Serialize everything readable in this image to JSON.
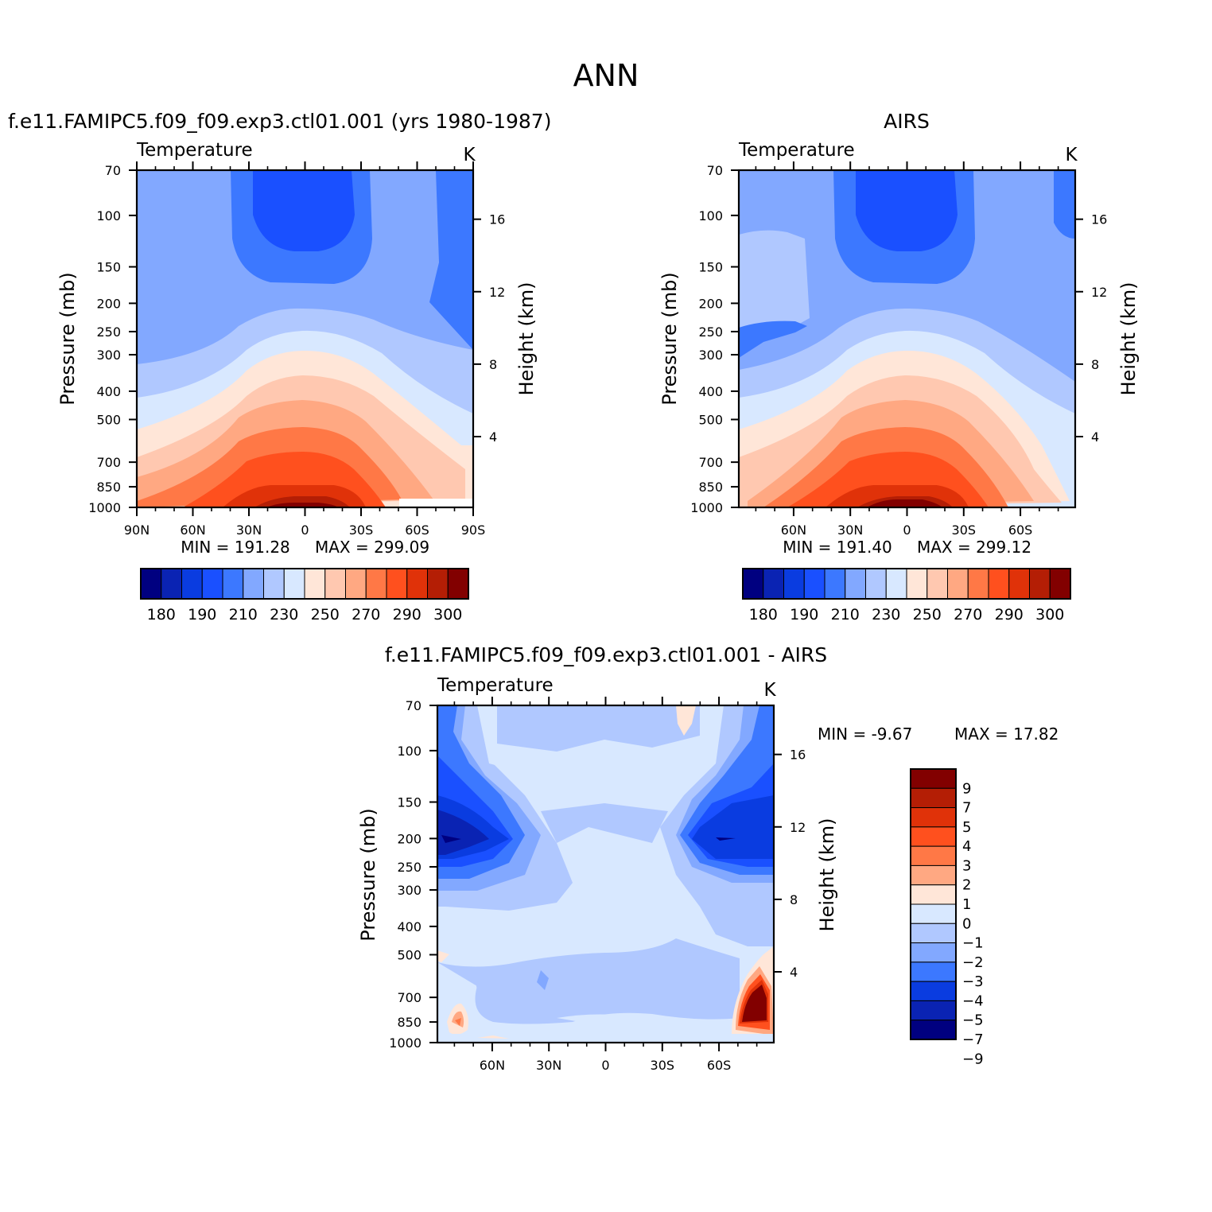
{
  "figure": {
    "title": "ANN"
  },
  "colors": {
    "abs_scale": [
      "#000080",
      "#0a23b3",
      "#0a3ce0",
      "#1a50ff",
      "#3c78ff",
      "#82a8ff",
      "#b0c8ff",
      "#d8e8ff",
      "#ffe6d8",
      "#ffc8b0",
      "#ffa882",
      "#ff7846",
      "#ff501e",
      "#e03209",
      "#b41e05",
      "#820000"
    ],
    "diff_scale": [
      "#820000",
      "#b41e05",
      "#e03209",
      "#ff501e",
      "#ff7846",
      "#ffa882",
      "#ffe6d8",
      "#d8e8ff",
      "#b0c8ff",
      "#82a8ff",
      "#3c78ff",
      "#0a3ce0",
      "#0a23b3",
      "#000080"
    ]
  },
  "chart_data": [
    {
      "type": "heatmap",
      "panel_title": "f.e11.FAMIPC5.f09_f09.exp3.ctl01.001 (yrs 1980-1987)",
      "variable": "Temperature",
      "units": "K",
      "ylabel": "Pressure (mb)",
      "ylabel_right": "Height (km)",
      "x_ticks": [
        "90N",
        "60N",
        "30N",
        "0",
        "30S",
        "60S",
        "90S"
      ],
      "y_ticks": [
        70,
        100,
        150,
        200,
        250,
        300,
        400,
        500,
        700,
        850,
        1000
      ],
      "right_ticks": [
        16,
        12,
        8,
        4
      ],
      "min_label": "MIN = 191.28",
      "max_label": "MAX = 299.09",
      "colorbar_labels": [
        180,
        190,
        210,
        230,
        250,
        270,
        290,
        300
      ],
      "legend_position": "bottom",
      "ylim": [
        1000,
        70
      ],
      "log_y": true,
      "grid": false
    },
    {
      "type": "heatmap",
      "panel_title": "AIRS",
      "variable": "Temperature",
      "units": "K",
      "ylabel": "Pressure (mb)",
      "ylabel_right": "Height (km)",
      "x_ticks": [
        "60N",
        "30N",
        "0",
        "30S",
        "60S"
      ],
      "y_ticks": [
        70,
        100,
        150,
        200,
        250,
        300,
        400,
        500,
        700,
        850,
        1000
      ],
      "right_ticks": [
        16,
        12,
        8,
        4
      ],
      "min_label": "MIN = 191.40",
      "max_label": "MAX = 299.12",
      "colorbar_labels": [
        180,
        190,
        210,
        230,
        250,
        270,
        290,
        300
      ],
      "legend_position": "bottom",
      "ylim": [
        1000,
        70
      ],
      "log_y": true,
      "grid": false
    },
    {
      "type": "heatmap",
      "panel_title": "f.e11.FAMIPC5.f09_f09.exp3.ctl01.001 - AIRS",
      "variable": "Temperature",
      "units": "K",
      "ylabel": "Pressure (mb)",
      "ylabel_right": "Height (km)",
      "x_ticks": [
        "60N",
        "30N",
        "0",
        "30S",
        "60S"
      ],
      "y_ticks": [
        70,
        100,
        150,
        200,
        250,
        300,
        400,
        500,
        700,
        850,
        1000
      ],
      "right_ticks": [
        16,
        12,
        8,
        4
      ],
      "min_label": "MIN = -9.67",
      "max_label": "MAX = 17.82",
      "colorbar_labels": [
        9,
        7,
        5,
        4,
        3,
        2,
        1,
        0,
        -1,
        -2,
        -3,
        -4,
        -5,
        -7,
        -9
      ],
      "legend_position": "right",
      "ylim": [
        1000,
        70
      ],
      "log_y": true,
      "grid": false
    }
  ]
}
